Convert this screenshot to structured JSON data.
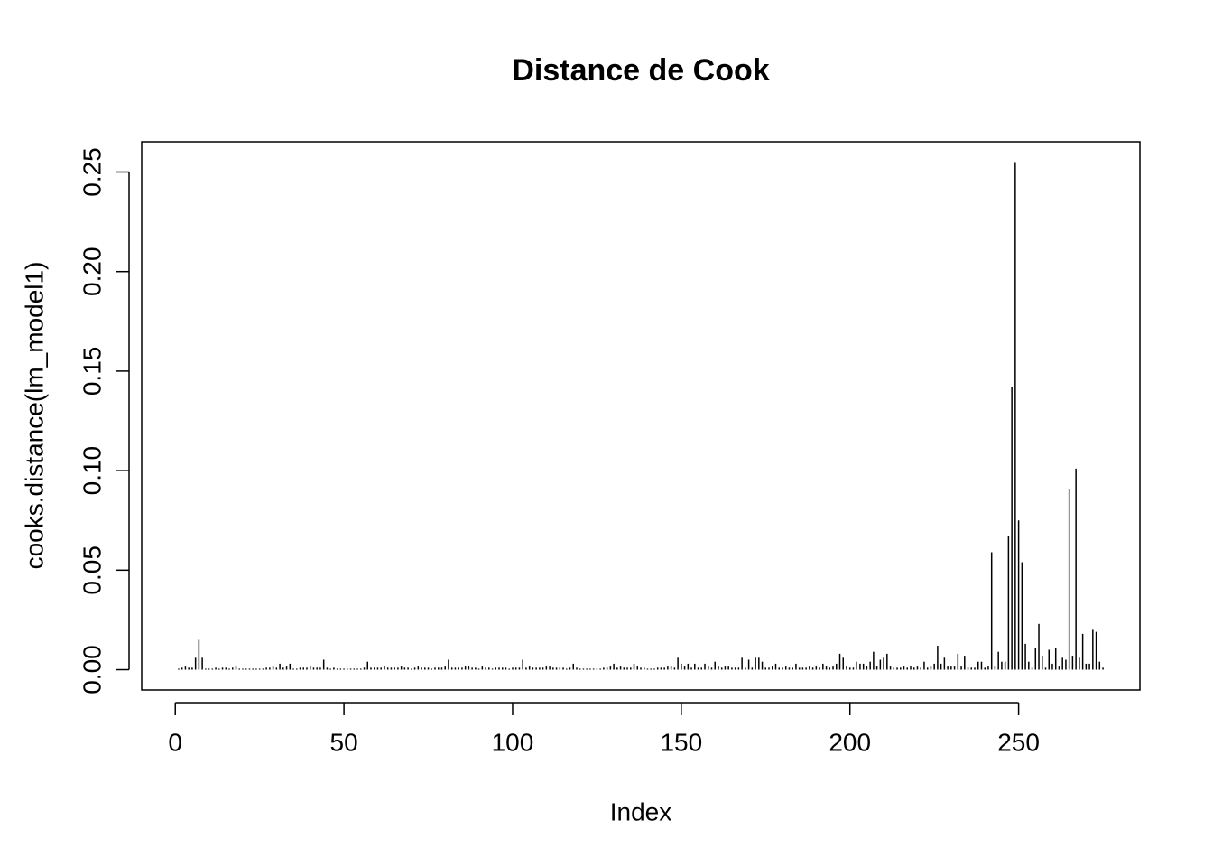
{
  "chart_data": {
    "type": "bar",
    "title": "Distance de Cook",
    "x_label": "Index",
    "y_label": "cooks.distance(lm_model1)",
    "x": [
      1,
      2,
      3,
      4,
      5,
      6,
      7,
      8,
      9,
      10,
      11,
      12,
      13,
      14,
      15,
      16,
      17,
      18,
      19,
      20,
      21,
      22,
      23,
      24,
      25,
      26,
      27,
      28,
      29,
      30,
      31,
      32,
      33,
      34,
      35,
      36,
      37,
      38,
      39,
      40,
      41,
      42,
      43,
      44,
      45,
      46,
      47,
      48,
      49,
      50,
      51,
      52,
      53,
      54,
      55,
      56,
      57,
      58,
      59,
      60,
      61,
      62,
      63,
      64,
      65,
      66,
      67,
      68,
      69,
      70,
      71,
      72,
      73,
      74,
      75,
      76,
      77,
      78,
      79,
      80,
      81,
      82,
      83,
      84,
      85,
      86,
      87,
      88,
      89,
      90,
      91,
      92,
      93,
      94,
      95,
      96,
      97,
      98,
      99,
      100,
      101,
      102,
      103,
      104,
      105,
      106,
      107,
      108,
      109,
      110,
      111,
      112,
      113,
      114,
      115,
      116,
      117,
      118,
      119,
      120,
      121,
      122,
      123,
      124,
      125,
      126,
      127,
      128,
      129,
      130,
      131,
      132,
      133,
      134,
      135,
      136,
      137,
      138,
      139,
      140,
      141,
      142,
      143,
      144,
      145,
      146,
      147,
      148,
      149,
      150,
      151,
      152,
      153,
      154,
      155,
      156,
      157,
      158,
      159,
      160,
      161,
      162,
      163,
      164,
      165,
      166,
      167,
      168,
      169,
      170,
      171,
      172,
      173,
      174,
      175,
      176,
      177,
      178,
      179,
      180,
      181,
      182,
      183,
      184,
      185,
      186,
      187,
      188,
      189,
      190,
      191,
      192,
      193,
      194,
      195,
      196,
      197,
      198,
      199,
      200,
      201,
      202,
      203,
      204,
      205,
      206,
      207,
      208,
      209,
      210,
      211,
      212,
      213,
      214,
      215,
      216,
      217,
      218,
      219,
      220,
      221,
      222,
      223,
      224,
      225,
      226,
      227,
      228,
      229,
      230,
      231,
      232,
      233,
      234,
      235,
      236,
      237,
      238,
      239,
      240,
      241,
      242,
      243,
      244,
      245,
      246,
      247,
      248,
      249,
      250,
      251,
      252,
      253,
      254,
      255,
      256,
      257,
      258,
      259,
      260,
      261,
      262,
      263,
      264,
      265,
      266,
      267,
      268,
      269,
      270,
      271,
      272,
      273,
      274,
      275
    ],
    "values": [
      0.0005,
      0.001,
      0.002,
      0.001,
      0.001,
      0.006,
      0.015,
      0.006,
      0.0005,
      0.0005,
      0.0005,
      0.001,
      0.0005,
      0.001,
      0.001,
      0.0005,
      0.001,
      0.002,
      0.0005,
      0.0005,
      0.0005,
      0.0005,
      0.0005,
      0.0005,
      0.0005,
      0.0005,
      0.001,
      0.001,
      0.002,
      0.001,
      0.003,
      0.001,
      0.002,
      0.003,
      0.0005,
      0.0005,
      0.001,
      0.001,
      0.001,
      0.002,
      0.001,
      0.001,
      0.001,
      0.005,
      0.001,
      0.0005,
      0.001,
      0.0005,
      0.0005,
      0.0005,
      0.0005,
      0.0005,
      0.0005,
      0.0005,
      0.0005,
      0.001,
      0.004,
      0.001,
      0.001,
      0.001,
      0.001,
      0.002,
      0.001,
      0.001,
      0.001,
      0.001,
      0.002,
      0.001,
      0.001,
      0.0005,
      0.001,
      0.002,
      0.001,
      0.001,
      0.001,
      0.0005,
      0.001,
      0.001,
      0.001,
      0.002,
      0.005,
      0.001,
      0.001,
      0.001,
      0.001,
      0.002,
      0.002,
      0.001,
      0.001,
      0.0005,
      0.002,
      0.001,
      0.001,
      0.0005,
      0.001,
      0.001,
      0.001,
      0.001,
      0.0005,
      0.001,
      0.001,
      0.001,
      0.005,
      0.001,
      0.002,
      0.001,
      0.001,
      0.001,
      0.001,
      0.002,
      0.002,
      0.001,
      0.001,
      0.001,
      0.001,
      0.0005,
      0.001,
      0.003,
      0.001,
      0.0005,
      0.0005,
      0.0005,
      0.0005,
      0.0005,
      0.0005,
      0.0005,
      0.001,
      0.001,
      0.002,
      0.003,
      0.001,
      0.002,
      0.001,
      0.001,
      0.001,
      0.003,
      0.002,
      0.001,
      0.001,
      0.0005,
      0.0005,
      0.0005,
      0.001,
      0.001,
      0.001,
      0.002,
      0.002,
      0.001,
      0.006,
      0.003,
      0.002,
      0.003,
      0.001,
      0.003,
      0.001,
      0.001,
      0.003,
      0.002,
      0.001,
      0.004,
      0.002,
      0.001,
      0.002,
      0.002,
      0.001,
      0.001,
      0.001,
      0.006,
      0.001,
      0.005,
      0.001,
      0.006,
      0.006,
      0.004,
      0.001,
      0.001,
      0.002,
      0.003,
      0.001,
      0.001,
      0.002,
      0.001,
      0.001,
      0.003,
      0.001,
      0.001,
      0.001,
      0.002,
      0.001,
      0.002,
      0.001,
      0.003,
      0.002,
      0.001,
      0.002,
      0.003,
      0.008,
      0.006,
      0.002,
      0.001,
      0.001,
      0.004,
      0.003,
      0.003,
      0.002,
      0.004,
      0.009,
      0.002,
      0.005,
      0.006,
      0.008,
      0.002,
      0.001,
      0.001,
      0.001,
      0.002,
      0.001,
      0.002,
      0.001,
      0.002,
      0.001,
      0.004,
      0.001,
      0.002,
      0.003,
      0.012,
      0.003,
      0.006,
      0.002,
      0.002,
      0.002,
      0.008,
      0.002,
      0.007,
      0.001,
      0.001,
      0.001,
      0.004,
      0.004,
      0.001,
      0.002,
      0.059,
      0.002,
      0.009,
      0.004,
      0.004,
      0.067,
      0.142,
      0.255,
      0.075,
      0.054,
      0.013,
      0.004,
      0.001,
      0.011,
      0.023,
      0.007,
      0.001,
      0.01,
      0.003,
      0.011,
      0.002,
      0.006,
      0.005,
      0.091,
      0.007,
      0.101,
      0.006,
      0.018,
      0.003,
      0.003,
      0.02,
      0.019,
      0.004,
      0.001
    ],
    "color": "#000000",
    "xlim": [
      -9.96,
      285.96
    ],
    "xticks": [
      0,
      50,
      100,
      150,
      200,
      250
    ],
    "ylim": [
      -0.0102,
      0.2652
    ],
    "yticks": [
      {
        "value": 0,
        "label": "0.00"
      },
      {
        "value": 0.05,
        "label": "0.05"
      },
      {
        "value": 0.1,
        "label": "0.10"
      },
      {
        "value": 0.15,
        "label": "0.15"
      },
      {
        "value": 0.2,
        "label": "0.20"
      },
      {
        "value": 0.25,
        "label": "0.25"
      }
    ],
    "grid": false
  }
}
